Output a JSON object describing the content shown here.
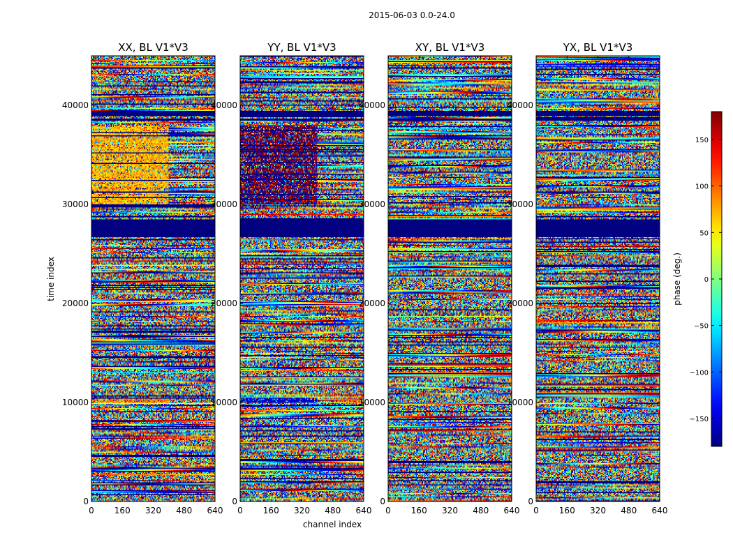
{
  "chart_data": {
    "type": "heatmap",
    "suptitle": "2015-06-03 0.0-24.0",
    "xlabel": "channel index",
    "ylabel": "time index",
    "xlim": [
      0,
      640
    ],
    "ylim": [
      0,
      45000
    ],
    "xticks": [
      0,
      160,
      320,
      480,
      640
    ],
    "yticks": [
      0,
      10000,
      20000,
      30000,
      40000
    ],
    "colormap": "jet",
    "colorbar": {
      "label": "phase (deg.)",
      "range": [
        -180,
        180
      ],
      "ticks": [
        150,
        100,
        50,
        0,
        -50,
        -100,
        -150
      ],
      "tick_labels": [
        "150",
        "100",
        "50",
        "0",
        "−50",
        "−100",
        "−150"
      ]
    },
    "panels": [
      {
        "title": "XX, BL V1*V3",
        "pol": "XX"
      },
      {
        "title": "YY, BL V1*V3",
        "pol": "YY"
      },
      {
        "title": "XY, BL V1*V3",
        "pol": "XY"
      },
      {
        "title": "YX, BL V1*V3",
        "pol": "YX"
      }
    ],
    "flagged_time_bands": [
      [
        26700,
        28500
      ],
      [
        39000,
        39500
      ],
      [
        38500,
        38700
      ]
    ],
    "coherent_regions": [
      {
        "panel": "XX",
        "t": [
          30000,
          38000
        ],
        "ch": [
          0,
          400
        ],
        "phase": 70
      },
      {
        "panel": "XX",
        "t": [
          9900,
          10500
        ],
        "ch": [
          0,
          400
        ],
        "phase": 90
      },
      {
        "panel": "YY",
        "t": [
          30000,
          38000
        ],
        "ch": [
          0,
          400
        ],
        "phase": 180
      },
      {
        "panel": "YY",
        "t": [
          9900,
          10500
        ],
        "ch": [
          0,
          400
        ],
        "phase": -150
      }
    ]
  }
}
